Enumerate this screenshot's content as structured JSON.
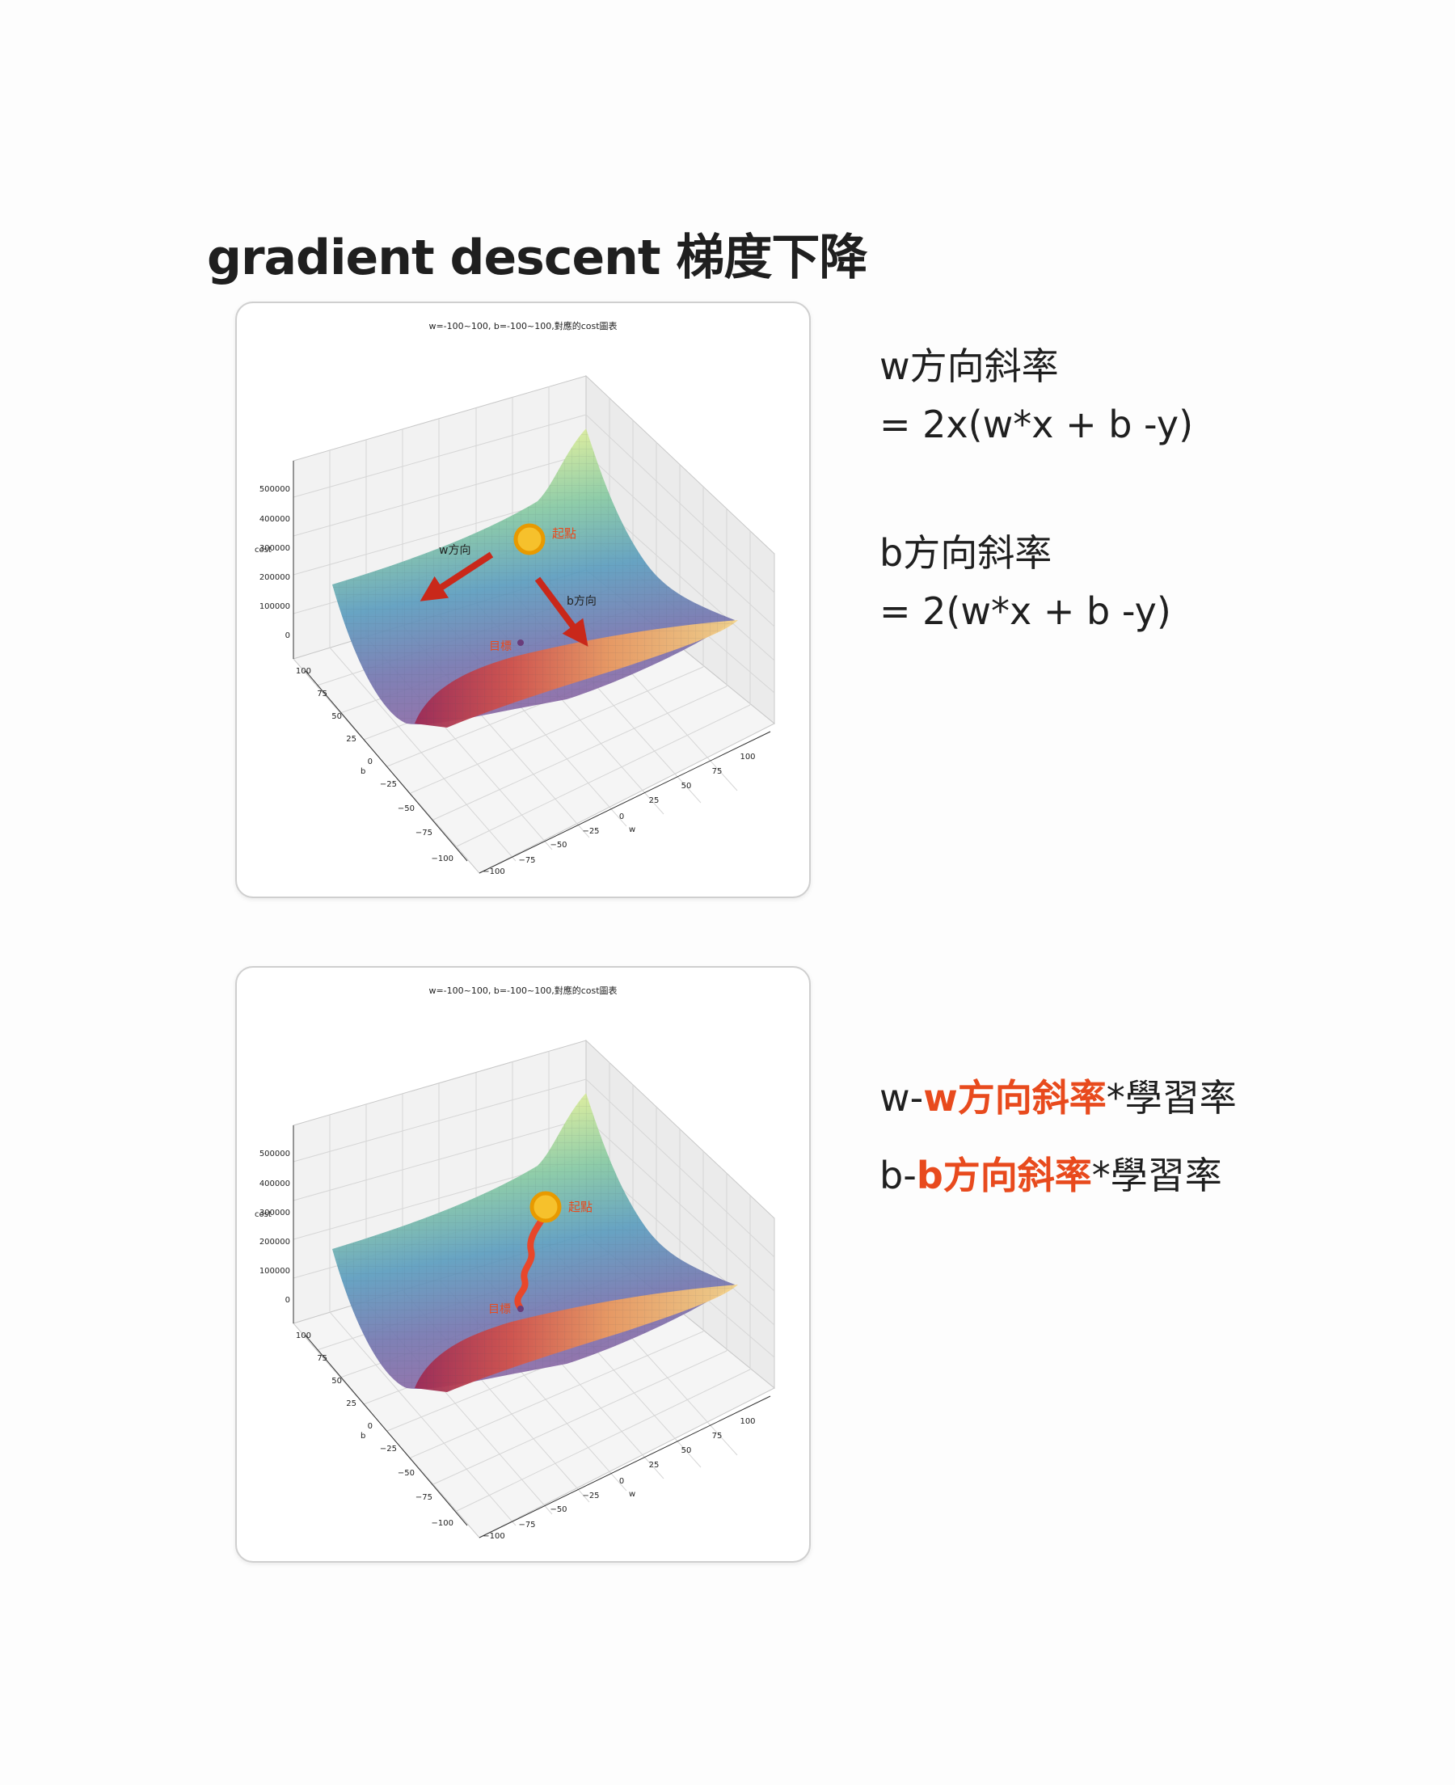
{
  "title": "gradient descent 梯度下降",
  "plots": [
    {
      "id": "top",
      "chart_data": {
        "type": "surface3d",
        "title": "w=-100~100, b=-100~100,對應的cost圖表",
        "xlabel": "w",
        "ylabel": "b",
        "zlabel": "cost",
        "x_ticks": [
          "−100",
          "−75",
          "−50",
          "−25",
          "0",
          "25",
          "50",
          "75",
          "100"
        ],
        "y_ticks": [
          "−100",
          "−75",
          "−50",
          "−25",
          "0",
          "25",
          "50",
          "75",
          "100"
        ],
        "z_ticks": [
          "0",
          "100000",
          "200000",
          "300000",
          "400000",
          "500000"
        ],
        "xlim": [
          -100,
          100
        ],
        "ylim": [
          -100,
          100
        ],
        "zlim": [
          0,
          550000
        ],
        "colormap": "Spectral"
      },
      "annotations": {
        "start": "起點",
        "end": "目標",
        "w_dir": "w方向",
        "b_dir": "b方向"
      }
    },
    {
      "id": "bottom",
      "chart_data": {
        "type": "surface3d",
        "title": "w=-100~100, b=-100~100,對應的cost圖表",
        "xlabel": "w",
        "ylabel": "b",
        "zlabel": "cost",
        "x_ticks": [
          "−100",
          "−75",
          "−50",
          "−25",
          "0",
          "25",
          "50",
          "75",
          "100"
        ],
        "y_ticks": [
          "−100",
          "−75",
          "−50",
          "−25",
          "0",
          "25",
          "50",
          "75",
          "100"
        ],
        "z_ticks": [
          "0",
          "100000",
          "200000",
          "300000",
          "400000",
          "500000"
        ],
        "xlim": [
          -100,
          100
        ],
        "ylim": [
          -100,
          100
        ],
        "zlim": [
          0,
          550000
        ],
        "colormap": "Spectral"
      },
      "annotations": {
        "start": "起點",
        "end": "目標"
      }
    }
  ],
  "formulas": {
    "w_line1": "w方向斜率",
    "w_line2": "= 2x(w*x + b -y)",
    "b_line1": "b方向斜率",
    "b_line2": "= 2(w*x + b -y)"
  },
  "update_rules": {
    "w_prefix": "w-",
    "w_hl": "w方向斜率",
    "w_suffix": "*學習率",
    "b_prefix": "b-",
    "b_hl": "b方向斜率",
    "b_suffix": "*學習率"
  },
  "colors": {
    "highlight": "#e84a1d",
    "arrow": "#c9281a",
    "start_marker": "#f0a500",
    "path": "#e8472a"
  }
}
